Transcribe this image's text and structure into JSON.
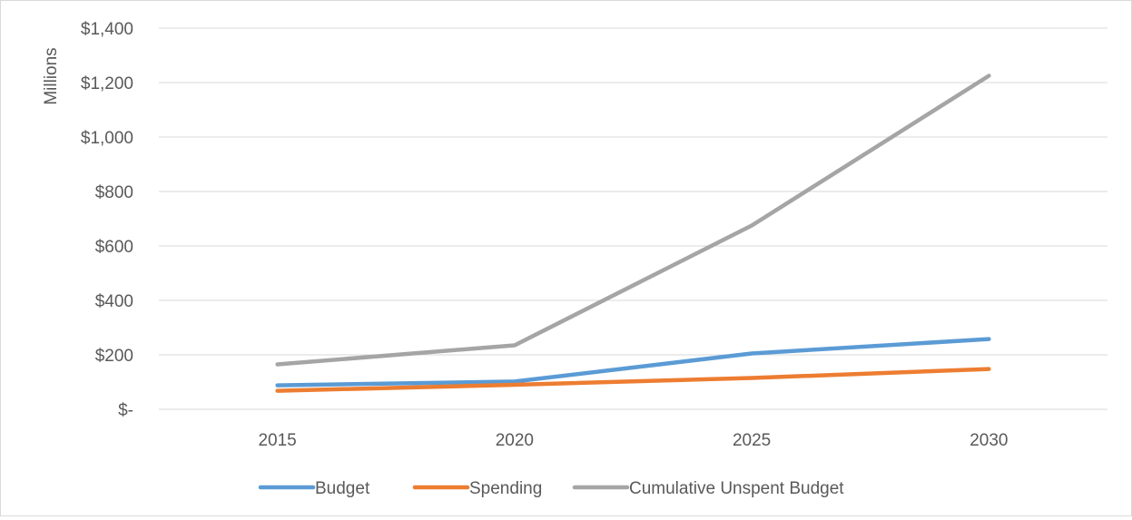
{
  "chart_data": {
    "type": "line",
    "ylabel": "Millions",
    "categories": [
      "2015",
      "2020",
      "2025",
      "2030"
    ],
    "ylim": [
      0,
      1400
    ],
    "y_ticks": [
      {
        "value": 0,
        "label": "$-"
      },
      {
        "value": 200,
        "label": "$200"
      },
      {
        "value": 400,
        "label": "$400"
      },
      {
        "value": 600,
        "label": "$600"
      },
      {
        "value": 800,
        "label": "$800"
      },
      {
        "value": 1000,
        "label": "$1,000"
      },
      {
        "value": 1200,
        "label": "$1,200"
      },
      {
        "value": 1400,
        "label": "$1,400"
      }
    ],
    "grid": true,
    "legend_position": "bottom",
    "series": [
      {
        "name": "Budget",
        "color": "#5b9bd5",
        "values": [
          88,
          102,
          205,
          258
        ]
      },
      {
        "name": "Spending",
        "color": "#ed7d31",
        "values": [
          68,
          90,
          115,
          148
        ]
      },
      {
        "name": "Cumulative Unspent Budget",
        "color": "#a5a5a5",
        "values": [
          165,
          235,
          675,
          1225
        ]
      }
    ]
  }
}
